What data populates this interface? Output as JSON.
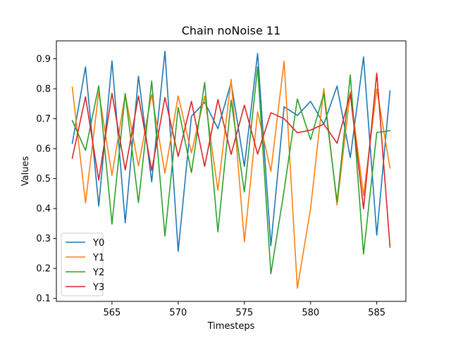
{
  "chart_data": {
    "type": "line",
    "title": "Chain noNoise 11",
    "xlabel": "Timesteps",
    "ylabel": "Values",
    "xlim": [
      560.8,
      587.2
    ],
    "ylim": [
      0.09,
      0.96
    ],
    "xticks": [
      565,
      570,
      575,
      580,
      585
    ],
    "yticks": [
      0.1,
      0.2,
      0.3,
      0.4,
      0.5,
      0.6,
      0.7,
      0.8,
      0.9
    ],
    "legend_position": "lower-left",
    "grid": false,
    "x": [
      562,
      563,
      564,
      565,
      566,
      567,
      568,
      569,
      570,
      571,
      572,
      573,
      574,
      575,
      576,
      577,
      578,
      579,
      580,
      581,
      582,
      583,
      584,
      585,
      586
    ],
    "series": [
      {
        "name": "Y0",
        "color": "#1f77b4",
        "values": [
          0.617,
          0.873,
          0.408,
          0.893,
          0.352,
          0.842,
          0.489,
          0.925,
          0.257,
          0.708,
          0.755,
          0.667,
          0.821,
          0.541,
          0.918,
          0.276,
          0.74,
          0.711,
          0.758,
          0.682,
          0.809,
          0.57,
          0.906,
          0.311,
          0.793
        ]
      },
      {
        "name": "Y1",
        "color": "#ff7f0e",
        "values": [
          0.805,
          0.419,
          0.79,
          0.511,
          0.782,
          0.542,
          0.781,
          0.518,
          0.776,
          0.586,
          0.775,
          0.461,
          0.831,
          0.289,
          0.723,
          0.524,
          0.892,
          0.134,
          0.4,
          0.801,
          0.412,
          0.79,
          0.443,
          0.799,
          0.535
        ]
      },
      {
        "name": "Y2",
        "color": "#2ca02c",
        "values": [
          0.694,
          0.594,
          0.81,
          0.348,
          0.784,
          0.42,
          0.826,
          0.308,
          0.738,
          0.52,
          0.821,
          0.322,
          0.762,
          0.455,
          0.873,
          0.182,
          0.46,
          0.766,
          0.63,
          0.784,
          0.422,
          0.846,
          0.248,
          0.654,
          0.66
        ]
      },
      {
        "name": "Y3",
        "color": "#d62728",
        "values": [
          0.568,
          0.773,
          0.495,
          0.785,
          0.529,
          0.776,
          0.527,
          0.771,
          0.574,
          0.758,
          0.541,
          0.764,
          0.581,
          0.745,
          0.582,
          0.72,
          0.7,
          0.653,
          0.662,
          0.682,
          0.618,
          0.783,
          0.399,
          0.852,
          0.271
        ]
      }
    ]
  }
}
